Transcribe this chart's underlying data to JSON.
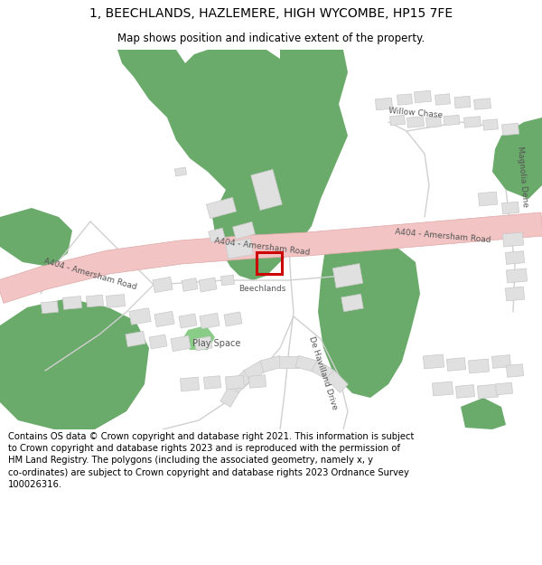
{
  "title": "1, BEECHLANDS, HAZLEMERE, HIGH WYCOMBE, HP15 7FE",
  "subtitle": "Map shows position and indicative extent of the property.",
  "footer": "Contains OS data © Crown copyright and database right 2021. This information is subject\nto Crown copyright and database rights 2023 and is reproduced with the permission of\nHM Land Registry. The polygons (including the associated geometry, namely x, y\nco-ordinates) are subject to Crown copyright and database rights 2023 Ordnance Survey\n100026316.",
  "bg_color": "#ffffff",
  "map_bg": "#f7f7f7",
  "road_color": "#f2c4c4",
  "road_border": "#dea8a8",
  "green_color": "#6aaa6a",
  "building_color": "#e0e0e0",
  "building_border": "#c8c8c8",
  "road_line_color": "#d8d8d8",
  "property_color": "#cc0000",
  "title_fontsize": 10,
  "subtitle_fontsize": 8.5,
  "footer_fontsize": 7.2,
  "label_color": "#555555"
}
